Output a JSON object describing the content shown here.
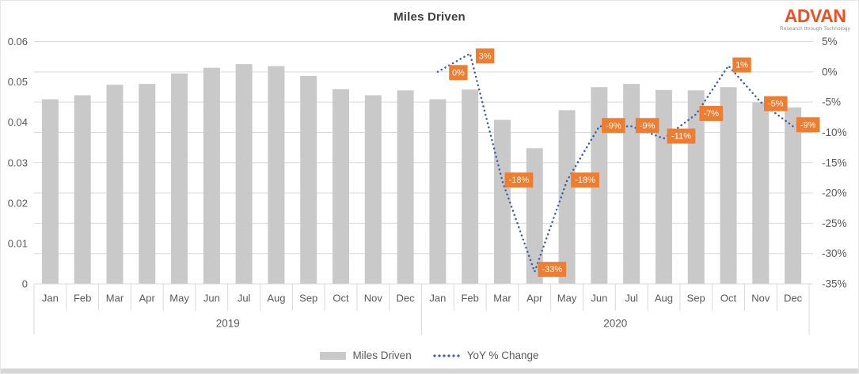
{
  "title": "Miles Driven",
  "logo": {
    "name": "ADVAN",
    "tagline": "Research through Technology"
  },
  "colors": {
    "bar": "#C9C9C9",
    "line": "#3B5EA6",
    "label_bg": "#ED7D31",
    "label_text": "#FFFFFF",
    "grid": "#D9D9D9",
    "axis_text": "#595959",
    "title_text": "#404040",
    "logo_orange": "#F04E23"
  },
  "legend": {
    "items": [
      {
        "label": "Miles Driven",
        "swatch": "bar"
      },
      {
        "label": "YoY % Change",
        "swatch": "dotted-line"
      }
    ]
  },
  "chart_data": {
    "type": "combo",
    "title": "Miles Driven",
    "categories": [
      "Jan",
      "Feb",
      "Mar",
      "Apr",
      "May",
      "Jun",
      "Jul",
      "Aug",
      "Sep",
      "Oct",
      "Nov",
      "Dec",
      "Jan",
      "Feb",
      "Mar",
      "Apr",
      "May",
      "Jun",
      "Jul",
      "Aug",
      "Sep",
      "Oct",
      "Nov",
      "Dec"
    ],
    "category_groups": [
      {
        "label": "2019",
        "from": 0,
        "to": 11
      },
      {
        "label": "2020",
        "from": 12,
        "to": 23
      }
    ],
    "left_axis": {
      "min": 0,
      "max": 0.06,
      "ticks": [
        "0",
        "0.01",
        "0.02",
        "0.03",
        "0.04",
        "0.05",
        "0.06"
      ]
    },
    "right_axis": {
      "min": -35,
      "max": 5,
      "ticks": [
        "5%",
        "0%",
        "-5%",
        "-10%",
        "-15%",
        "-20%",
        "-25%",
        "-30%",
        "-35%"
      ]
    },
    "grid": true,
    "legend_position": "bottom",
    "series": [
      {
        "name": "Miles Driven",
        "type": "bar",
        "axis": "left",
        "values": [
          0.0457,
          0.0467,
          0.0493,
          0.0495,
          0.0521,
          0.0535,
          0.0544,
          0.0539,
          0.0515,
          0.0482,
          0.0467,
          0.0479,
          0.0457,
          0.0481,
          0.0406,
          0.0336,
          0.043,
          0.0487,
          0.0495,
          0.048,
          0.0479,
          0.0487,
          0.0449,
          0.0437
        ]
      },
      {
        "name": "YoY % Change",
        "type": "dotted-line",
        "axis": "right",
        "start_index": 12,
        "values": [
          0,
          3,
          -18,
          -33,
          -18,
          -9,
          -9,
          -11,
          -7,
          1,
          -5,
          -9
        ],
        "point_labels": [
          "0%",
          "3%",
          "-18%",
          "-33%",
          "-18%",
          "-9%",
          "-9%",
          "-11%",
          "-7%",
          "1%",
          "-5%",
          "-9%"
        ],
        "label_offsets": [
          [
            26,
            1
          ],
          [
            19,
            3
          ],
          [
            21,
            -1
          ],
          [
            22,
            -3
          ],
          [
            23,
            -1
          ],
          [
            18,
            -1
          ],
          [
            20,
            -1
          ],
          [
            22,
            -3
          ],
          [
            19,
            -1
          ],
          [
            17,
            -1
          ],
          [
            19,
            2
          ],
          [
            19,
            -2
          ]
        ]
      }
    ]
  }
}
